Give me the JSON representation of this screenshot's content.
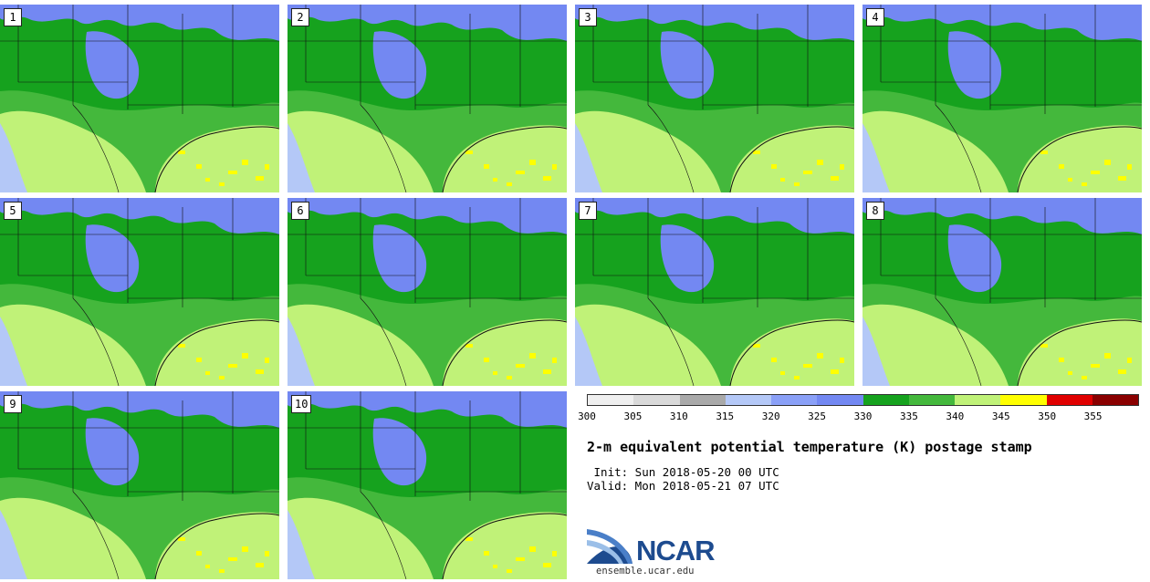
{
  "panels": [
    {
      "label": "1"
    },
    {
      "label": "2"
    },
    {
      "label": "3"
    },
    {
      "label": "4"
    },
    {
      "label": "5"
    },
    {
      "label": "6"
    },
    {
      "label": "7"
    },
    {
      "label": "8"
    },
    {
      "label": "9"
    },
    {
      "label": "10"
    }
  ],
  "colorbar": {
    "colors": [
      "#efefef",
      "#d9d9d9",
      "#a9a9a9",
      "#b4c8f7",
      "#8aa0f7",
      "#7388f2",
      "#16a21e",
      "#44b83c",
      "#c0f278",
      "#ffff00",
      "#e00000",
      "#8a0000"
    ],
    "ticks": [
      "300",
      "305",
      "310",
      "315",
      "320",
      "325",
      "330",
      "335",
      "340",
      "345",
      "350",
      "355"
    ]
  },
  "title": "2-m equivalent potential temperature (K) postage stamp",
  "init": " Init: Sun 2018-05-20 00 UTC",
  "valid": "Valid: Mon 2018-05-21 07 UTC",
  "logo": {
    "text": "NCAR",
    "url": "ensemble.ucar.edu"
  }
}
